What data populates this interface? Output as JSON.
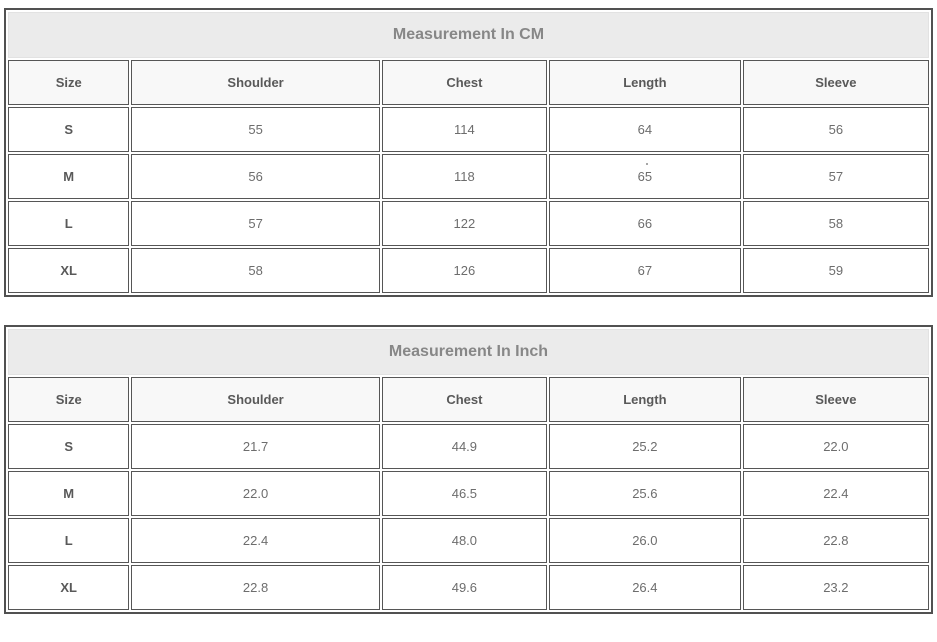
{
  "colors": {
    "outer_border": "#515151",
    "cell_border": "#565656",
    "banner_bg": "#ebebeb",
    "banner_text": "#878787",
    "column_header_bg": "#f8f8f8",
    "header_text": "#595959",
    "value_text": "#6d6d6d",
    "page_bg": "#ffffff"
  },
  "artifacts": {
    "stray_dot": "tiny dot rendered just above the value 65 (CM table, row M, Length column)"
  },
  "chart_data": [
    {
      "type": "table",
      "title": "Measurement In CM",
      "columns": [
        "Size",
        "Shoulder",
        "Chest",
        "Length",
        "Sleeve"
      ],
      "rows": [
        [
          "S",
          "55",
          "114",
          "64",
          "56"
        ],
        [
          "M",
          "56",
          "118",
          "65",
          "57"
        ],
        [
          "L",
          "57",
          "122",
          "66",
          "58"
        ],
        [
          "XL",
          "58",
          "126",
          "67",
          "59"
        ]
      ]
    },
    {
      "type": "table",
      "title": "Measurement In Inch",
      "columns": [
        "Size",
        "Shoulder",
        "Chest",
        "Length",
        "Sleeve"
      ],
      "rows": [
        [
          "S",
          "21.7",
          "44.9",
          "25.2",
          "22.0"
        ],
        [
          "M",
          "22.0",
          "46.5",
          "25.6",
          "22.4"
        ],
        [
          "L",
          "22.4",
          "48.0",
          "26.0",
          "22.8"
        ],
        [
          "XL",
          "22.8",
          "49.6",
          "26.4",
          "23.2"
        ]
      ]
    }
  ]
}
